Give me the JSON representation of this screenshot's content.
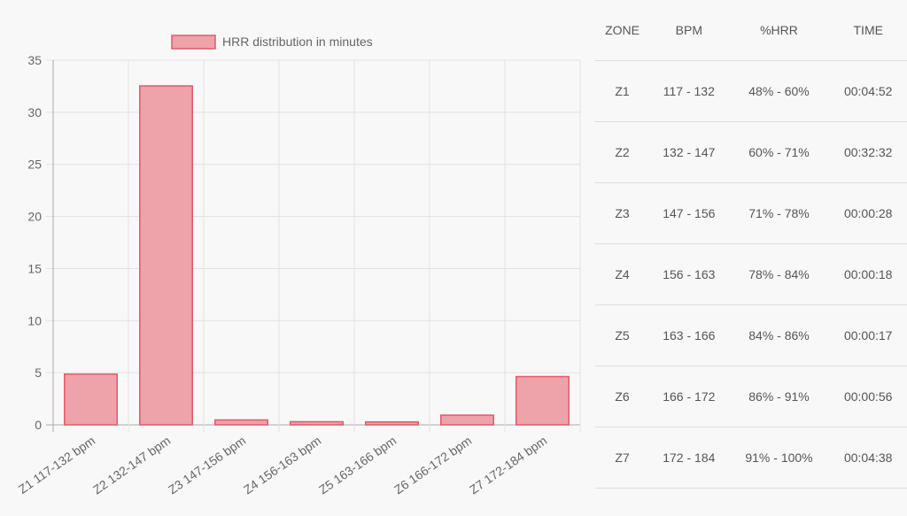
{
  "chart_data": {
    "type": "bar",
    "legend": "HRR distribution in minutes",
    "legend_position": "top",
    "categories": [
      "Z1 117-132 bpm",
      "Z2 132-147 bpm",
      "Z3 147-156 bpm",
      "Z4 156-163 bpm",
      "Z5 163-166 bpm",
      "Z6 166-172 bpm",
      "Z7 172-184 bpm"
    ],
    "series": [
      {
        "name": "HRR distribution in minutes",
        "values": [
          4.87,
          32.53,
          0.47,
          0.3,
          0.28,
          0.93,
          4.63
        ]
      }
    ],
    "ylim": [
      0,
      35
    ],
    "yticks": [
      0,
      5,
      10,
      15,
      20,
      25,
      30,
      35
    ],
    "grid": true,
    "bar_fill": "#eea2aa",
    "bar_stroke": "#e05a68"
  },
  "table": {
    "headers": [
      "ZONE",
      "BPM",
      "%HRR",
      "TIME"
    ],
    "rows": [
      [
        "Z1",
        "117 - 132",
        "48% - 60%",
        "00:04:52"
      ],
      [
        "Z2",
        "132 - 147",
        "60% - 71%",
        "00:32:32"
      ],
      [
        "Z3",
        "147 - 156",
        "71% - 78%",
        "00:00:28"
      ],
      [
        "Z4",
        "156 - 163",
        "78% - 84%",
        "00:00:18"
      ],
      [
        "Z5",
        "163 - 166",
        "84% - 86%",
        "00:00:17"
      ],
      [
        "Z6",
        "166 - 172",
        "86% - 91%",
        "00:00:56"
      ],
      [
        "Z7",
        "172 - 184",
        "91% - 100%",
        "00:04:38"
      ]
    ]
  }
}
